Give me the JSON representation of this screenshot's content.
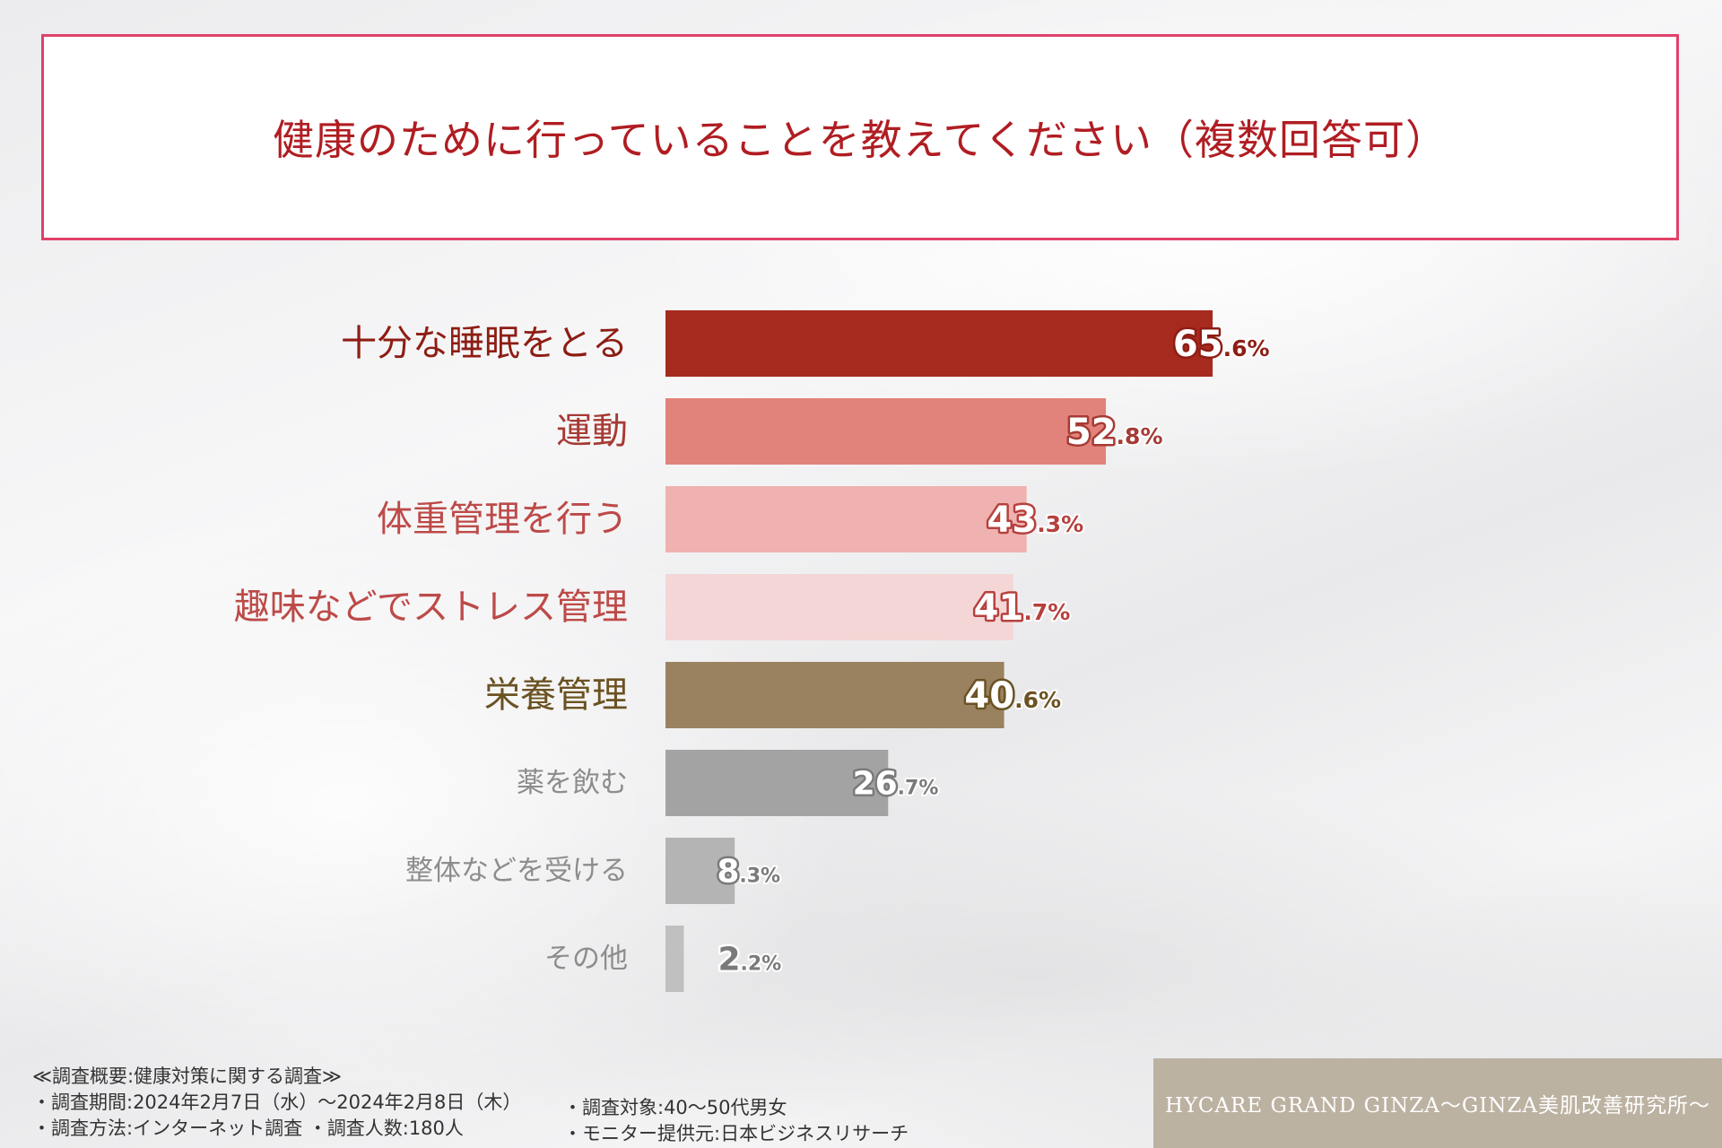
{
  "title": "健康のために行っていることを教えてください（複数回答可）",
  "chart_data": {
    "type": "bar",
    "orientation": "horizontal",
    "title": "健康のために行っていることを教えてください（複数回答可）",
    "unit": "%",
    "xlim": [
      0,
      100
    ],
    "categories": [
      "十分な睡眠をとる",
      "運動",
      "体重管理を行う",
      "趣味などでストレス管理",
      "栄養管理",
      "薬を飲む",
      "整体などを受ける",
      "その他"
    ],
    "values": [
      65.6,
      52.8,
      43.3,
      41.7,
      40.6,
      26.7,
      8.3,
      2.2
    ],
    "value_labels": [
      {
        "int": "65",
        "dec": ".6%"
      },
      {
        "int": "52",
        "dec": ".8%"
      },
      {
        "int": "43",
        "dec": ".3%"
      },
      {
        "int": "41",
        "dec": ".7%"
      },
      {
        "int": "40",
        "dec": ".6%"
      },
      {
        "int": "26",
        "dec": ".7%"
      },
      {
        "int": "8",
        "dec": ".3%"
      },
      {
        "int": "2",
        "dec": ".2%"
      }
    ],
    "bar_colors": [
      "#a62a1d",
      "#e2837b",
      "#efb2b0",
      "#f5d6d7",
      "#9a8260",
      "#a3a3a3",
      "#b4b4b4",
      "#c0c0c0"
    ],
    "label_colors": [
      "#8e1d14",
      "#a63a34",
      "#bd4a48",
      "#bd4a48",
      "#6b5222",
      "#8d8d8d",
      "#8d8d8d",
      "#8d8d8d"
    ],
    "value_text_colors": [
      "#ffffff",
      "#ffffff",
      "#ffffff",
      "#ffffff",
      "#ffffff",
      "#ffffff",
      "#ffffff",
      "#7a7a7a"
    ],
    "value_stroke_colors": [
      "#8e1d14",
      "#a63a34",
      "#b6413d",
      "#b6413d",
      "#6b5222",
      "#7a7a7a",
      "#7a7a7a",
      "#ffffff"
    ],
    "value_dec_colors": [
      "#8e1d14",
      "#a63a34",
      "#b6413d",
      "#b6413d",
      "#6b5222",
      "#7a7a7a",
      "#7a7a7a",
      "#7a7a7a"
    ]
  },
  "footer": {
    "summary": "≪調査概要:健康対策に関する調査≫",
    "period": "・調査期間:2024年2月7日（水）～2024年2月8日（木）",
    "method": "・調査方法:インターネット調査 ・調査人数:180人",
    "target": "・調査対象:40～50代男女",
    "provider": "・モニター提供元:日本ビジネスリサーチ"
  },
  "brand": "HYCARE GRAND GINZA～GINZA美肌改善研究所～"
}
